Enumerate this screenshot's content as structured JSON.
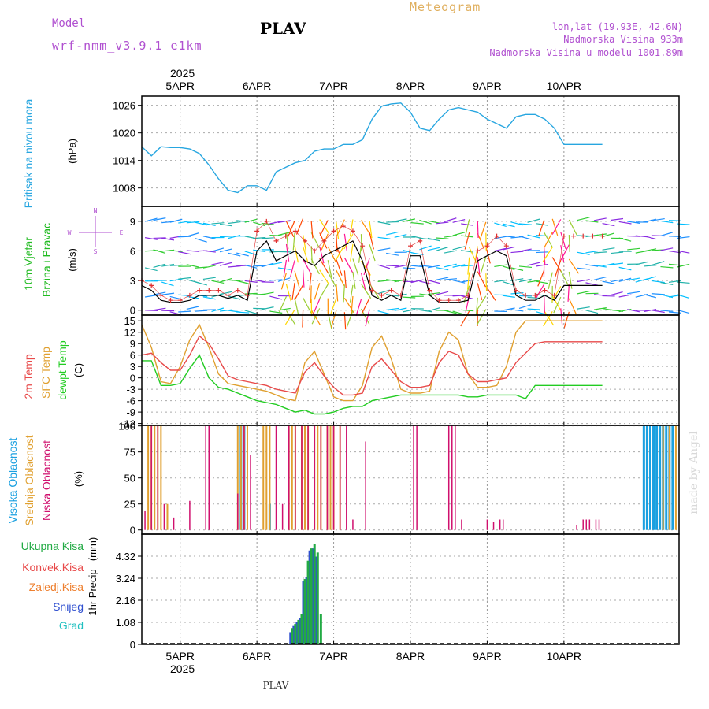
{
  "header": {
    "model_label": "Model",
    "model_name": "wrf-nmm_v3.9.1 e1km",
    "station": "PLAV",
    "product": "Meteogram",
    "coords": "lon,lat (19.93E, 42.6N)",
    "elev_real": "Nadmorska Visina 933m",
    "elev_model": "Nadmorska Visina u modelu 1001.89m",
    "footer_station": "PLAV",
    "credit": "made by Angel",
    "year": "2025"
  },
  "colors": {
    "pressure": "#27a6e0",
    "gust": "#e03030",
    "wind_black": "#000000",
    "temp2m": "#e84a4a",
    "sfc": "#e0a030",
    "dewpt": "#22cc22",
    "high_cloud": "#1aa0e0",
    "mid_cloud": "#e0a030",
    "low_cloud": "#d0106e",
    "precip_total": "#22aa44",
    "snow": "#3050d0",
    "grad": "#20c0c0",
    "model_text": "#b050d0",
    "product_text": "#e0b060"
  },
  "date_labels": [
    "5APR",
    "6APR",
    "7APR",
    "8APR",
    "9APR",
    "10APR"
  ],
  "chart_data": [
    {
      "type": "line",
      "panel": "pressure",
      "ylabel": "Pritisak na nivou mora",
      "unit": "(hPa)",
      "yticks": [
        1008,
        1014,
        1020,
        1026
      ],
      "ylim": [
        1004,
        1028
      ],
      "x_hours": [
        0,
        3,
        6,
        9,
        12,
        15,
        18,
        21,
        24,
        27,
        30,
        33,
        36,
        39,
        42,
        45,
        48,
        51,
        54,
        57,
        60,
        63,
        66,
        69,
        72,
        75,
        78,
        81,
        84,
        87,
        90,
        93,
        96,
        99,
        102,
        105,
        108,
        111,
        114,
        117,
        120,
        123,
        126,
        129,
        132,
        135,
        138,
        141,
        144
      ],
      "values": [
        1017.0,
        1015.0,
        1017.0,
        1016.8,
        1016.8,
        1016.5,
        1015.5,
        1013.0,
        1010.0,
        1007.5,
        1007.0,
        1008.5,
        1008.5,
        1007.5,
        1011.5,
        1012.5,
        1013.5,
        1014.0,
        1016.0,
        1016.5,
        1016.5,
        1017.5,
        1017.5,
        1018.5,
        1023.0,
        1025.8,
        1026.3,
        1026.5,
        1024.5,
        1021.0,
        1020.5,
        1023.0,
        1025.0,
        1025.5,
        1025.0,
        1024.5,
        1023.0,
        1022.0,
        1021.0,
        1023.5,
        1024.0,
        1024.0,
        1023.0,
        1021.0,
        1017.5,
        1017.5,
        1017.5,
        1017.5,
        1017.5
      ]
    },
    {
      "type": "line",
      "panel": "wind",
      "ylabel": "10m Vjetar Brzina i Pravac",
      "unit": "(m/s)",
      "compass": "W <-|-> E",
      "yticks": [
        0,
        3,
        6,
        9
      ],
      "ylim": [
        -0.5,
        10.5
      ],
      "x_hours": [
        0,
        3,
        6,
        9,
        12,
        15,
        18,
        21,
        24,
        27,
        30,
        33,
        36,
        39,
        42,
        45,
        48,
        51,
        54,
        57,
        60,
        63,
        66,
        69,
        72,
        75,
        78,
        81,
        84,
        87,
        90,
        93,
        96,
        99,
        102,
        105,
        108,
        111,
        114,
        117,
        120,
        123,
        126,
        129,
        132,
        135,
        138,
        141,
        144
      ],
      "series": [
        {
          "key": "wind_speed",
          "values": [
            2.5,
            2.0,
            1.0,
            0.8,
            0.8,
            1.0,
            1.5,
            1.5,
            1.5,
            1.2,
            1.5,
            1.0,
            6.0,
            7.0,
            5.0,
            5.5,
            6.0,
            5.0,
            4.5,
            5.5,
            6.0,
            6.5,
            7.0,
            5.0,
            1.5,
            1.0,
            1.5,
            1.0,
            5.5,
            5.5,
            1.5,
            0.8,
            0.8,
            0.8,
            1.0,
            5.0,
            5.5,
            6.0,
            5.5,
            1.5,
            1.0,
            1.0,
            1.5,
            1.0,
            2.5,
            2.5,
            2.5,
            2.5,
            2.5
          ]
        },
        {
          "key": "gust",
          "values": [
            3.0,
            2.5,
            1.5,
            1.0,
            1.0,
            1.5,
            2.0,
            2.0,
            2.0,
            1.5,
            2.0,
            1.5,
            8.0,
            9.0,
            7.0,
            7.5,
            8.0,
            7.0,
            6.0,
            7.0,
            8.0,
            8.5,
            8.0,
            6.5,
            2.0,
            1.5,
            2.0,
            1.5,
            6.5,
            7.0,
            2.0,
            1.0,
            1.0,
            1.0,
            1.5,
            6.0,
            6.5,
            7.5,
            6.5,
            2.0,
            1.5,
            1.5,
            2.0,
            1.5,
            7.5,
            7.5,
            7.5,
            7.5,
            7.5
          ]
        }
      ]
    },
    {
      "type": "line",
      "panel": "temperature",
      "ylabel": "2m Temp / SFC Temp / dewpt Temp",
      "unit": "(C)",
      "yticks": [
        -12,
        -9,
        -6,
        -3,
        0,
        3,
        6,
        9,
        12,
        15
      ],
      "ylim": [
        -12.5,
        16.5
      ],
      "x_hours": [
        0,
        3,
        6,
        9,
        12,
        15,
        18,
        21,
        24,
        27,
        30,
        33,
        36,
        39,
        42,
        45,
        48,
        51,
        54,
        57,
        60,
        63,
        66,
        69,
        72,
        75,
        78,
        81,
        84,
        87,
        90,
        93,
        96,
        99,
        102,
        105,
        108,
        111,
        114,
        117,
        120,
        123,
        126,
        129,
        132,
        135,
        138,
        141,
        144
      ],
      "series": [
        {
          "key": "temp2m",
          "values": [
            6.0,
            6.5,
            4.0,
            2.0,
            2.0,
            6.0,
            11.0,
            9.0,
            5.0,
            0.5,
            -0.5,
            -1.0,
            -1.5,
            -2.0,
            -3.0,
            -3.5,
            -4.0,
            1.5,
            4.0,
            0.5,
            -2.5,
            -4.5,
            -4.5,
            -4.0,
            3.0,
            5.0,
            2.0,
            -1.0,
            -2.5,
            -2.5,
            -2.0,
            4.0,
            7.0,
            6.0,
            1.0,
            -1.0,
            -1.0,
            -0.5,
            0.0,
            4.0,
            6.5,
            9.0,
            9.5,
            9.5,
            9.5,
            9.5,
            9.5,
            9.5,
            9.5
          ]
        },
        {
          "key": "sfc",
          "values": [
            14.0,
            8.0,
            -1.0,
            -1.5,
            3.0,
            10.0,
            14.0,
            8.0,
            1.0,
            -1.5,
            -2.0,
            -2.5,
            -3.0,
            -3.5,
            -4.5,
            -5.5,
            -6.0,
            4.0,
            7.0,
            1.0,
            -5.0,
            -6.0,
            -6.0,
            -2.0,
            8.0,
            11.0,
            5.0,
            -3.0,
            -4.0,
            -4.0,
            -3.5,
            7.0,
            12.0,
            10.0,
            1.0,
            -2.5,
            -2.5,
            -2.0,
            3.0,
            12.0,
            15.0,
            15.0,
            15.0,
            15.0,
            15.0,
            15.0,
            15.0,
            15.0,
            15.0
          ]
        },
        {
          "key": "dewpt",
          "values": [
            4.5,
            4.5,
            -2.0,
            -2.0,
            -1.5,
            2.5,
            6.0,
            0.0,
            -2.5,
            -3.0,
            -4.0,
            -5.0,
            -6.0,
            -6.5,
            -7.0,
            -8.0,
            -9.0,
            -8.5,
            -9.5,
            -9.5,
            -9.0,
            -8.0,
            -7.5,
            -7.5,
            -6.0,
            -5.5,
            -5.0,
            -4.5,
            -4.5,
            -4.5,
            -4.5,
            -4.5,
            -4.5,
            -4.5,
            -5.0,
            -5.0,
            -4.5,
            -4.5,
            -4.5,
            -4.5,
            -5.5,
            -2.0,
            -2.0,
            -2.0,
            -2.0,
            -2.0,
            -2.0,
            -2.0,
            -2.0
          ]
        }
      ]
    },
    {
      "type": "bar",
      "panel": "clouds",
      "ylabel": "Visoka Oblacnost / Srednja Oblacnost / Niska Oblacnost",
      "unit": "(%)",
      "yticks": [
        0,
        25,
        50,
        75,
        100
      ],
      "ylim": [
        0,
        100
      ],
      "series": [
        {
          "key": "high_cloud",
          "bars": [
            [
              31,
              100
            ],
            [
              32,
              100
            ],
            [
              40,
              25
            ],
            [
              157,
              100
            ],
            [
              158,
              100
            ],
            [
              159,
              100
            ],
            [
              160,
              100
            ],
            [
              161,
              100
            ],
            [
              162,
              100
            ],
            [
              163,
              100
            ],
            [
              164,
              100
            ],
            [
              165,
              100
            ],
            [
              166,
              100
            ]
          ]
        },
        {
          "key": "mid_cloud",
          "bars": [
            [
              2,
              100
            ],
            [
              3,
              100
            ],
            [
              4,
              100
            ],
            [
              5,
              100
            ],
            [
              6,
              100
            ],
            [
              8,
              25
            ],
            [
              30,
              100
            ],
            [
              31,
              100
            ],
            [
              32,
              100
            ],
            [
              33,
              100
            ],
            [
              38,
              100
            ],
            [
              39,
              100
            ],
            [
              40,
              100
            ],
            [
              46,
              100
            ],
            [
              47,
              100
            ],
            [
              48,
              100
            ],
            [
              50,
              100
            ],
            [
              51,
              100
            ],
            [
              52,
              100
            ],
            [
              54,
              100
            ],
            [
              55,
              100
            ],
            [
              56,
              100
            ],
            [
              58,
              100
            ],
            [
              59,
              100
            ],
            [
              60,
              100
            ],
            [
              62,
              100
            ],
            [
              163,
              100
            ],
            [
              165,
              100
            ],
            [
              167,
              100
            ]
          ]
        },
        {
          "key": "low_cloud",
          "bars": [
            [
              1,
              18
            ],
            [
              3,
              100
            ],
            [
              5,
              100
            ],
            [
              7,
              25
            ],
            [
              10,
              12
            ],
            [
              15,
              28
            ],
            [
              20,
              100
            ],
            [
              21,
              100
            ],
            [
              30,
              35
            ],
            [
              32,
              100
            ],
            [
              34,
              72
            ],
            [
              42,
              100
            ],
            [
              44,
              25
            ],
            [
              46,
              100
            ],
            [
              48,
              100
            ],
            [
              50,
              100
            ],
            [
              52,
              100
            ],
            [
              54,
              100
            ],
            [
              56,
              100
            ],
            [
              58,
              100
            ],
            [
              60,
              100
            ],
            [
              62,
              100
            ],
            [
              64,
              100
            ],
            [
              66,
              10
            ],
            [
              70,
              85
            ],
            [
              85,
              100
            ],
            [
              86,
              100
            ],
            [
              96,
              100
            ],
            [
              97,
              100
            ],
            [
              98,
              100
            ],
            [
              100,
              10
            ],
            [
              108,
              10
            ],
            [
              110,
              8
            ],
            [
              112,
              10
            ],
            [
              113,
              10
            ],
            [
              136,
              5
            ],
            [
              138,
              10
            ],
            [
              139,
              10
            ],
            [
              140,
              10
            ],
            [
              142,
              10
            ],
            [
              143,
              10
            ]
          ]
        }
      ]
    },
    {
      "type": "bar",
      "panel": "precipitation",
      "ylabel": "1hr Precip",
      "unit": "(mm)",
      "legend": [
        "Ukupna Kisa",
        "Konvek.Kisa",
        "Zaledj.Kisa",
        "Snijeg",
        "Grad"
      ],
      "yticks": [
        0,
        1.08,
        2.16,
        3.24,
        4.32
      ],
      "ylim": [
        0,
        5.4
      ],
      "series": [
        {
          "key": "snow",
          "bars": [
            [
              46.5,
              0.6
            ],
            [
              47.5,
              0.9
            ],
            [
              48.5,
              1.1
            ],
            [
              49.5,
              1.3
            ],
            [
              50.5,
              3.1
            ],
            [
              51.5,
              3.3
            ],
            [
              52.5,
              4.6
            ],
            [
              53.5,
              4.7
            ],
            [
              54.5,
              4.3
            ]
          ]
        },
        {
          "key": "precip_total",
          "bars": [
            [
              45.5,
              0.05
            ],
            [
              47,
              0.8
            ],
            [
              48,
              1.0
            ],
            [
              49,
              1.2
            ],
            [
              50,
              1.5
            ],
            [
              51,
              3.2
            ],
            [
              52,
              4.1
            ],
            [
              53,
              4.7
            ],
            [
              54,
              4.9
            ],
            [
              55,
              4.5
            ],
            [
              56,
              1.5
            ]
          ]
        }
      ]
    }
  ],
  "labels": {
    "pressure": "Pritisak na nivou mora",
    "pressure_unit": "(hPa)",
    "wind_line1": "10m Vjetar",
    "wind_line2": "Brzina i Pravac",
    "wind_unit": "(m/s)",
    "compass_n": "N",
    "compass_s": "S",
    "compass_w": "W",
    "compass_e": "E",
    "temp2m": "2m Temp",
    "sfc": "SFC Temp",
    "dewpt": "dewpt Temp",
    "temp_unit": "(C)",
    "high_cloud": "Visoka Oblacnost",
    "mid_cloud": "Srednja Oblacnost",
    "low_cloud": "Niska Oblacnost",
    "cloud_unit": "(%)",
    "precip": "1hr Precip",
    "precip_unit": "(mm)",
    "leg_total": "Ukupna Kisa",
    "leg_conv": "Konvek.Kisa",
    "leg_freez": "Zaledj.Kisa",
    "leg_snow": "Snijeg",
    "leg_grad": "Grad"
  }
}
